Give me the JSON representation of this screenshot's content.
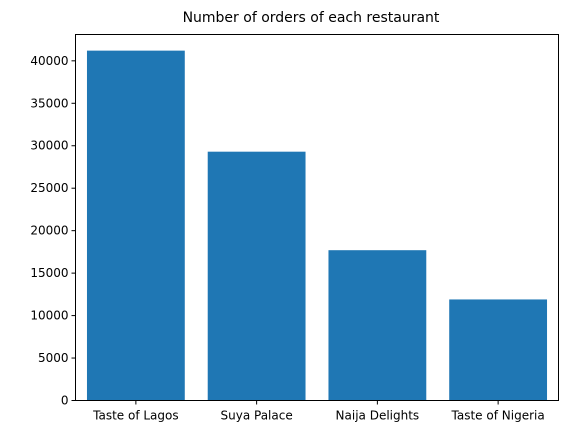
{
  "chart_data": {
    "type": "bar",
    "title": "Number of orders of each restaurant",
    "xlabel": "",
    "ylabel": "",
    "categories": [
      "Taste of Lagos",
      "Suya Palace",
      "Naija Delights",
      "Taste of Nigeria"
    ],
    "values": [
      41200,
      29300,
      17700,
      11900
    ],
    "ylim": [
      0,
      43100
    ],
    "yticks": [
      0,
      5000,
      10000,
      15000,
      20000,
      25000,
      30000,
      35000,
      40000
    ],
    "ytick_labels": [
      "0",
      "5000",
      "10000",
      "15000",
      "20000",
      "25000",
      "30000",
      "35000",
      "40000"
    ],
    "grid": false,
    "bar_color": "#1f77b4"
  }
}
